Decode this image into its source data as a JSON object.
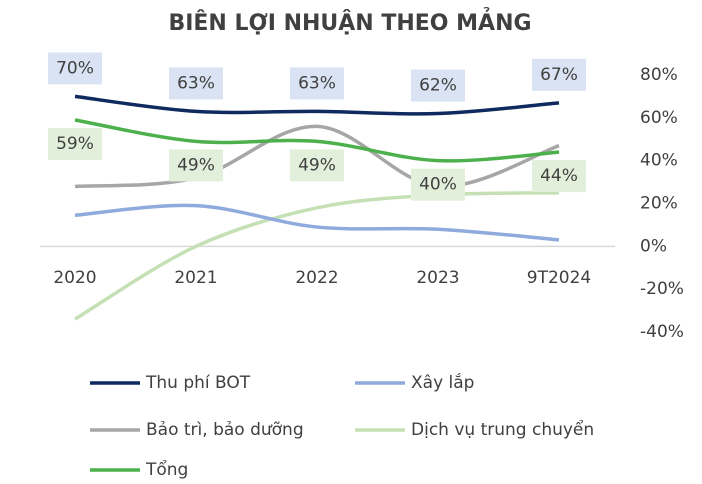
{
  "chart_data": {
    "type": "line",
    "title": "BIÊN LỢI NHUẬN THEO MẢNG",
    "categories": [
      "2020",
      "2021",
      "2022",
      "2023",
      "9T2024"
    ],
    "series": [
      {
        "name": "Thu phí BOT",
        "color": "#0e2a5e",
        "values": [
          70,
          63,
          63,
          62,
          67
        ],
        "value_labels": [
          "70%",
          "63%",
          "63%",
          "62%",
          "67%"
        ],
        "label_bg": "#dae3f3"
      },
      {
        "name": "Xây lắp",
        "color": "#8faadc",
        "values": [
          14.5,
          19,
          9,
          8,
          3
        ]
      },
      {
        "name": "Bảo trì, bảo dưỡng",
        "color": "#a6a6a6",
        "values": [
          28,
          32,
          56,
          28,
          47
        ]
      },
      {
        "name": "Dịch vụ trung chuyển",
        "color": "#c5e0b4",
        "values": [
          -34,
          0,
          18,
          24,
          25
        ]
      },
      {
        "name": "Tổng",
        "color": "#4cb04c",
        "values": [
          59,
          49,
          49,
          40,
          44
        ],
        "value_labels": [
          "59%",
          "49%",
          "49%",
          "40%",
          "44%"
        ],
        "label_bg": "#e2efda"
      }
    ],
    "ylim": [
      -40,
      80
    ],
    "yticks": [
      {
        "value": -40,
        "label": "-40%"
      },
      {
        "value": -20,
        "label": "-20%"
      },
      {
        "value": 0,
        "label": "0%"
      },
      {
        "value": 20,
        "label": "20%"
      },
      {
        "value": 40,
        "label": "40%"
      },
      {
        "value": 60,
        "label": "60%"
      },
      {
        "value": 80,
        "label": "80%"
      }
    ],
    "legend": "bottom"
  }
}
